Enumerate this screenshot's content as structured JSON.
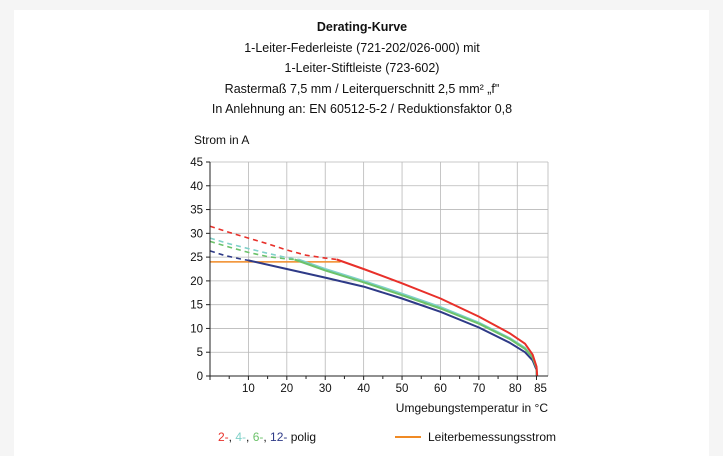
{
  "chart_data": {
    "type": "line",
    "title_lines": [
      "Derating-Kurve",
      "1-Leiter-Federleiste (721-202/026-000) mit",
      "1-Leiter-Stiftleiste (723-602)",
      "Rastermaß 7,5 mm / Leiterquerschnitt 2,5 mm² „f\"",
      "In Anlehnung an: EN 60512-5-2 / Reduktionsfaktor 0,8"
    ],
    "ylabel": "Strom in A",
    "xlabel": "Umgebungstemperatur in °C",
    "xlim": [
      0,
      88
    ],
    "ylim": [
      0,
      45
    ],
    "x_ticks": [
      10,
      20,
      30,
      40,
      50,
      60,
      70,
      80,
      85
    ],
    "y_ticks": [
      0,
      5,
      10,
      15,
      20,
      25,
      30,
      35,
      40,
      45
    ],
    "grid": true,
    "rated_current": {
      "name": "Leiterbemessungsstrom",
      "color": "#f08a24",
      "value": 24,
      "x_end": 34
    },
    "series": [
      {
        "label_prefix": "2",
        "color": "#e8302a",
        "dashed": [
          [
            0,
            31.5
          ],
          [
            5,
            30.2
          ],
          [
            10,
            29.0
          ],
          [
            15,
            27.8
          ],
          [
            20,
            26.5
          ],
          [
            25,
            25.4
          ],
          [
            30,
            24.8
          ],
          [
            33,
            24.5
          ]
        ],
        "solid": [
          [
            33,
            24.5
          ],
          [
            40,
            22.5
          ],
          [
            50,
            19.5
          ],
          [
            60,
            16.3
          ],
          [
            70,
            12.5
          ],
          [
            78,
            9.0
          ],
          [
            82,
            6.8
          ],
          [
            84,
            4.5
          ],
          [
            85,
            2.0
          ],
          [
            85.2,
            0
          ]
        ]
      },
      {
        "label_prefix": "4",
        "color": "#7fd0c8",
        "dashed": [
          [
            0,
            29.0
          ],
          [
            5,
            27.8
          ],
          [
            10,
            26.8
          ],
          [
            15,
            25.8
          ],
          [
            20,
            24.9
          ],
          [
            23,
            24.5
          ]
        ],
        "solid": [
          [
            23,
            24.5
          ],
          [
            30,
            22.5
          ],
          [
            40,
            20.0
          ],
          [
            50,
            17.3
          ],
          [
            60,
            14.5
          ],
          [
            70,
            11.2
          ],
          [
            78,
            8.0
          ],
          [
            82,
            5.9
          ],
          [
            84,
            4.0
          ],
          [
            85,
            1.8
          ],
          [
            85.1,
            0
          ]
        ]
      },
      {
        "label_prefix": "6",
        "color": "#6cc26a",
        "dashed": [
          [
            0,
            28.3
          ],
          [
            5,
            27.1
          ],
          [
            10,
            26.0
          ],
          [
            15,
            25.1
          ],
          [
            20,
            24.6
          ],
          [
            22,
            24.5
          ]
        ],
        "solid": [
          [
            22,
            24.5
          ],
          [
            30,
            22.2
          ],
          [
            40,
            19.7
          ],
          [
            50,
            17.0
          ],
          [
            60,
            14.2
          ],
          [
            70,
            11.0
          ],
          [
            78,
            7.8
          ],
          [
            82,
            5.7
          ],
          [
            84,
            3.9
          ],
          [
            85,
            1.7
          ],
          [
            85.1,
            0
          ]
        ]
      },
      {
        "label_prefix": "12",
        "color": "#2e3a87",
        "dashed": [
          [
            0,
            26.3
          ],
          [
            4,
            25.3
          ],
          [
            8,
            24.6
          ],
          [
            10,
            24.3
          ]
        ],
        "solid": [
          [
            10,
            24.3
          ],
          [
            20,
            22.5
          ],
          [
            30,
            20.7
          ],
          [
            40,
            18.8
          ],
          [
            50,
            16.3
          ],
          [
            60,
            13.5
          ],
          [
            70,
            10.2
          ],
          [
            78,
            7.0
          ],
          [
            82,
            5.0
          ],
          [
            84,
            3.3
          ],
          [
            85,
            1.3
          ],
          [
            85.05,
            0
          ]
        ]
      }
    ],
    "legend": {
      "suffix": "-polig",
      "parts": [
        {
          "text": "2-",
          "color": "#e8302a"
        },
        {
          "text": ", ",
          "color": "#111111"
        },
        {
          "text": "4-",
          "color": "#7fd0c8"
        },
        {
          "text": ", ",
          "color": "#111111"
        },
        {
          "text": "6-",
          "color": "#6cc26a"
        },
        {
          "text": ", ",
          "color": "#111111"
        },
        {
          "text": "12-",
          "color": "#2e3a87"
        },
        {
          "text": " polig",
          "color": "#111111"
        }
      ]
    }
  }
}
